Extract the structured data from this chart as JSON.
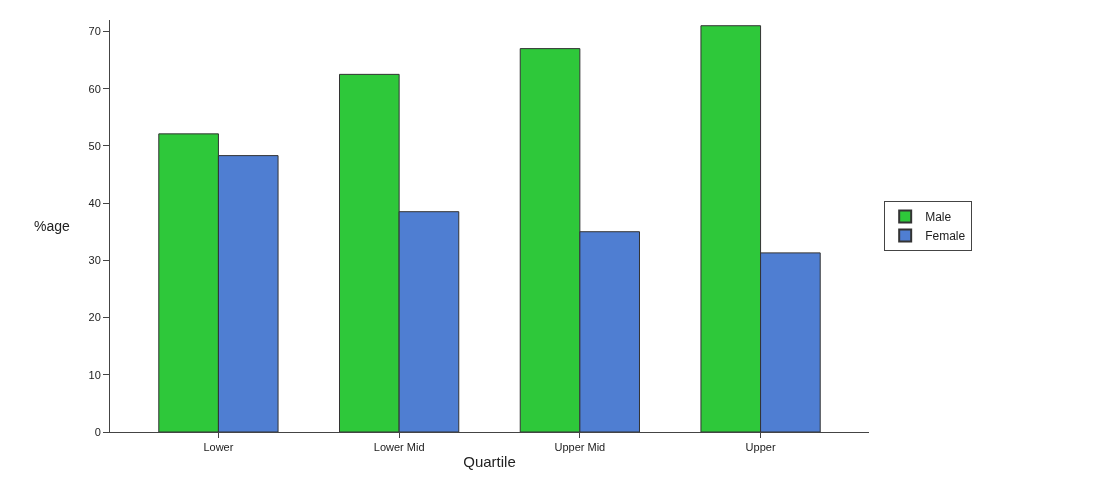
{
  "chart_data": {
    "type": "bar",
    "xlabel": "Quartile",
    "ylabel": "%age",
    "categories": [
      "Lower",
      "Lower Mid",
      "Upper Mid",
      "Upper"
    ],
    "series": [
      {
        "name": "Male",
        "color": "#2ec83a",
        "values": [
          52.1,
          62.5,
          67,
          71
        ]
      },
      {
        "name": "Female",
        "color": "#4f7ed2",
        "values": [
          48.3,
          38.5,
          35,
          31.3
        ]
      }
    ],
    "ylim": [
      0,
      72
    ],
    "yticks": [
      0,
      10,
      20,
      30,
      40,
      50,
      60,
      70
    ],
    "grid": false,
    "legend": "right"
  }
}
